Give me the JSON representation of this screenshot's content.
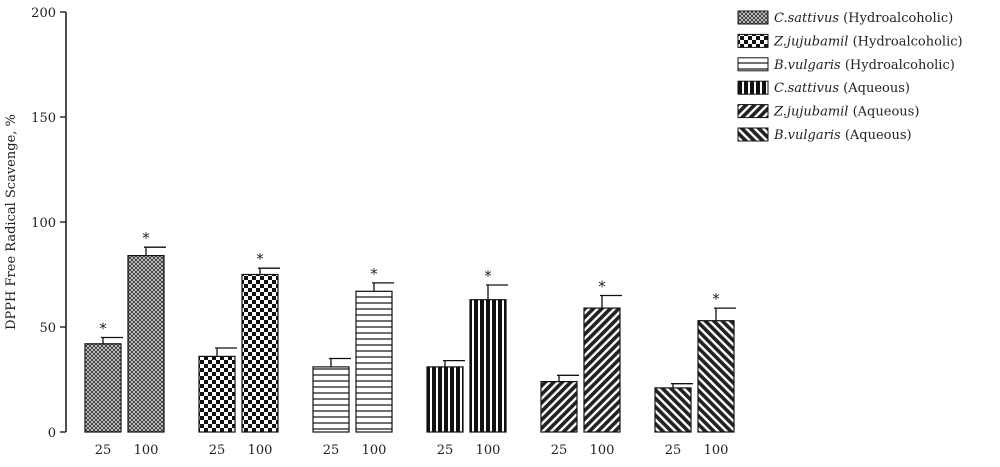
{
  "chart_data": {
    "type": "bar",
    "title": "",
    "xlabel": "",
    "ylabel": "DPPH Free Radical Scavenge, %",
    "ylim": [
      0,
      200
    ],
    "yticks": [
      0,
      50,
      100,
      150,
      200
    ],
    "categories": [
      "25",
      "100"
    ],
    "legend_position": "top-right",
    "grid": false,
    "series": [
      {
        "name": "(Hydroalcoholic)",
        "species": "C.sattivus",
        "pattern": "dense-grid",
        "values": [
          42,
          84
        ],
        "errors": [
          3,
          4
        ],
        "significant": [
          true,
          true
        ]
      },
      {
        "name": "(Hydroalcoholic)",
        "species": "Z.jujubamil",
        "pattern": "checker",
        "values": [
          36,
          75
        ],
        "errors": [
          4,
          3
        ],
        "significant": [
          false,
          true
        ]
      },
      {
        "name": "(Hydroalcoholic)",
        "species": "B.vulgaris",
        "pattern": "horizontal",
        "values": [
          31,
          67
        ],
        "errors": [
          4,
          4
        ],
        "significant": [
          false,
          true
        ]
      },
      {
        "name": "(Aqueous)",
        "species": "C.sattivus",
        "pattern": "vertical",
        "values": [
          31,
          63
        ],
        "errors": [
          3,
          7
        ],
        "significant": [
          false,
          true
        ]
      },
      {
        "name": "(Aqueous)",
        "species": "Z.jujubamil",
        "pattern": "diagonal-fwd",
        "values": [
          24,
          59
        ],
        "errors": [
          3,
          6
        ],
        "significant": [
          false,
          true
        ]
      },
      {
        "name": "(Aqueous)",
        "species": "B.vulgaris",
        "pattern": "diagonal-back",
        "values": [
          21,
          53
        ],
        "errors": [
          2,
          6
        ],
        "significant": [
          false,
          true
        ]
      }
    ],
    "significance_marker": "*"
  }
}
